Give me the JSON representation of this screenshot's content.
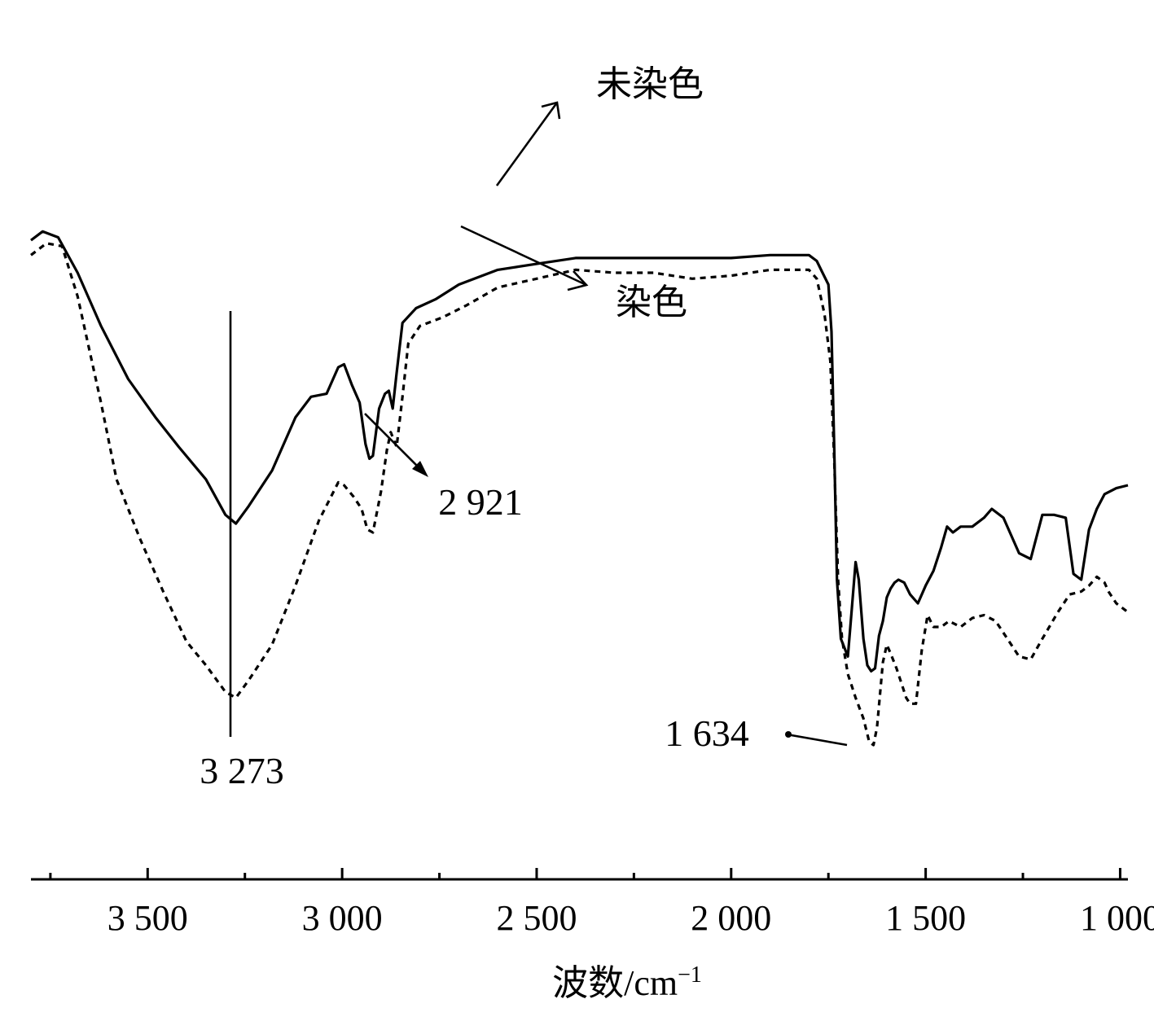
{
  "chart_data": {
    "type": "line",
    "xlabel": "波数/cm",
    "xlabel_sup": "−1",
    "x_reversed": true,
    "xlim": [
      3800,
      980
    ],
    "major_ticks": [
      3500,
      3000,
      2500,
      2000,
      1500,
      1000
    ],
    "minor_ticks": [
      3750,
      3250,
      2750,
      2250,
      1750,
      1250
    ],
    "tick_labels": [
      "3 500",
      "3 000",
      "2 500",
      "2 000",
      "1 500",
      "1 000"
    ],
    "y_axis_shown": false,
    "ylim": [
      0,
      100
    ],
    "series": [
      {
        "name": "未染色",
        "style": "solid",
        "points": [
          [
            3800,
            85.5
          ],
          [
            3770,
            87.0
          ],
          [
            3730,
            86.0
          ],
          [
            3680,
            80.0
          ],
          [
            3620,
            71.0
          ],
          [
            3550,
            62.0
          ],
          [
            3480,
            55.5
          ],
          [
            3420,
            50.5
          ],
          [
            3350,
            45.0
          ],
          [
            3300,
            39.0
          ],
          [
            3273,
            37.5
          ],
          [
            3240,
            40.5
          ],
          [
            3180,
            46.5
          ],
          [
            3120,
            55.5
          ],
          [
            3080,
            59.0
          ],
          [
            3040,
            59.5
          ],
          [
            3010,
            64.0
          ],
          [
            2995,
            64.5
          ],
          [
            2975,
            61.0
          ],
          [
            2955,
            58.0
          ],
          [
            2940,
            51.0
          ],
          [
            2930,
            48.5
          ],
          [
            2921,
            49.0
          ],
          [
            2905,
            57.0
          ],
          [
            2890,
            59.5
          ],
          [
            2880,
            60.0
          ],
          [
            2870,
            57.0
          ],
          [
            2860,
            63.0
          ],
          [
            2845,
            71.5
          ],
          [
            2810,
            74.0
          ],
          [
            2760,
            75.5
          ],
          [
            2700,
            78.0
          ],
          [
            2600,
            80.5
          ],
          [
            2500,
            81.5
          ],
          [
            2400,
            82.5
          ],
          [
            2300,
            82.5
          ],
          [
            2200,
            82.5
          ],
          [
            2100,
            82.5
          ],
          [
            2000,
            82.5
          ],
          [
            1900,
            83.0
          ],
          [
            1800,
            83.0
          ],
          [
            1780,
            82.0
          ],
          [
            1765,
            80.0
          ],
          [
            1750,
            78.0
          ],
          [
            1742,
            70.0
          ],
          [
            1735,
            50.0
          ],
          [
            1728,
            28.0
          ],
          [
            1718,
            18.0
          ],
          [
            1700,
            15.0
          ],
          [
            1690,
            23.0
          ],
          [
            1680,
            31.0
          ],
          [
            1672,
            28.0
          ],
          [
            1660,
            18.0
          ],
          [
            1650,
            13.5
          ],
          [
            1640,
            12.5
          ],
          [
            1630,
            13.0
          ],
          [
            1620,
            18.5
          ],
          [
            1610,
            21.0
          ],
          [
            1600,
            25.0
          ],
          [
            1590,
            26.5
          ],
          [
            1580,
            27.5
          ],
          [
            1570,
            28.0
          ],
          [
            1555,
            27.5
          ],
          [
            1540,
            25.5
          ],
          [
            1520,
            24.0
          ],
          [
            1500,
            27.0
          ],
          [
            1480,
            29.5
          ],
          [
            1460,
            33.5
          ],
          [
            1445,
            37.0
          ],
          [
            1430,
            36.0
          ],
          [
            1410,
            37.0
          ],
          [
            1380,
            37.0
          ],
          [
            1350,
            38.5
          ],
          [
            1330,
            40.0
          ],
          [
            1300,
            38.5
          ],
          [
            1260,
            32.5
          ],
          [
            1230,
            31.5
          ],
          [
            1200,
            39.0
          ],
          [
            1170,
            39.0
          ],
          [
            1140,
            38.5
          ],
          [
            1120,
            29.0
          ],
          [
            1100,
            28.0
          ],
          [
            1080,
            36.5
          ],
          [
            1060,
            40.0
          ],
          [
            1040,
            42.5
          ],
          [
            1010,
            43.5
          ],
          [
            980,
            44.0
          ]
        ]
      },
      {
        "name": "染色",
        "style": "dashed",
        "points": [
          [
            3800,
            83.0
          ],
          [
            3760,
            85.0
          ],
          [
            3720,
            84.5
          ],
          [
            3680,
            76.0
          ],
          [
            3650,
            67.0
          ],
          [
            3620,
            58.0
          ],
          [
            3580,
            45.0
          ],
          [
            3520,
            35.0
          ],
          [
            3460,
            26.0
          ],
          [
            3400,
            17.5
          ],
          [
            3350,
            13.5
          ],
          [
            3300,
            9.0
          ],
          [
            3273,
            8.0
          ],
          [
            3240,
            11.0
          ],
          [
            3180,
            17.0
          ],
          [
            3120,
            27.0
          ],
          [
            3060,
            38.0
          ],
          [
            3010,
            44.5
          ],
          [
            2995,
            44.0
          ],
          [
            2970,
            42.0
          ],
          [
            2950,
            40.0
          ],
          [
            2935,
            36.5
          ],
          [
            2921,
            36.0
          ],
          [
            2900,
            43.0
          ],
          [
            2885,
            50.0
          ],
          [
            2875,
            53.0
          ],
          [
            2860,
            50.5
          ],
          [
            2845,
            59.0
          ],
          [
            2830,
            68.0
          ],
          [
            2800,
            71.0
          ],
          [
            2740,
            72.5
          ],
          [
            2680,
            74.5
          ],
          [
            2600,
            77.5
          ],
          [
            2500,
            79.0
          ],
          [
            2400,
            80.5
          ],
          [
            2300,
            80.0
          ],
          [
            2200,
            80.0
          ],
          [
            2100,
            79.0
          ],
          [
            2000,
            79.5
          ],
          [
            1900,
            80.5
          ],
          [
            1800,
            80.5
          ],
          [
            1780,
            79.0
          ],
          [
            1760,
            73.0
          ],
          [
            1745,
            65.0
          ],
          [
            1735,
            48.0
          ],
          [
            1725,
            28.0
          ],
          [
            1715,
            18.0
          ],
          [
            1700,
            12.0
          ],
          [
            1690,
            10.0
          ],
          [
            1680,
            8.0
          ],
          [
            1660,
            4.5
          ],
          [
            1645,
            0.5
          ],
          [
            1634,
            0.0
          ],
          [
            1625,
            3.0
          ],
          [
            1610,
            14.0
          ],
          [
            1600,
            17.0
          ],
          [
            1590,
            15.5
          ],
          [
            1575,
            13.0
          ],
          [
            1560,
            10.0
          ],
          [
            1550,
            8.0
          ],
          [
            1540,
            7.0
          ],
          [
            1525,
            7.0
          ],
          [
            1510,
            16.0
          ],
          [
            1495,
            22.0
          ],
          [
            1480,
            20.0
          ],
          [
            1460,
            20.0
          ],
          [
            1440,
            21.0
          ],
          [
            1410,
            20.0
          ],
          [
            1380,
            21.5
          ],
          [
            1350,
            22.0
          ],
          [
            1320,
            21.0
          ],
          [
            1290,
            18.0
          ],
          [
            1260,
            15.0
          ],
          [
            1230,
            14.5
          ],
          [
            1200,
            18.0
          ],
          [
            1160,
            22.5
          ],
          [
            1130,
            25.5
          ],
          [
            1100,
            26.0
          ],
          [
            1080,
            27.0
          ],
          [
            1060,
            28.5
          ],
          [
            1040,
            27.5
          ],
          [
            1030,
            26.0
          ],
          [
            1010,
            24.0
          ],
          [
            980,
            22.5
          ]
        ]
      }
    ],
    "annotations": [
      {
        "label": "3 273",
        "x": 3273
      },
      {
        "label": "2 921",
        "x": 2921
      },
      {
        "label": "1 634",
        "x": 1634
      },
      {
        "label": "未染色",
        "series": "未染色"
      },
      {
        "label": "染色",
        "series": "染色"
      }
    ]
  }
}
